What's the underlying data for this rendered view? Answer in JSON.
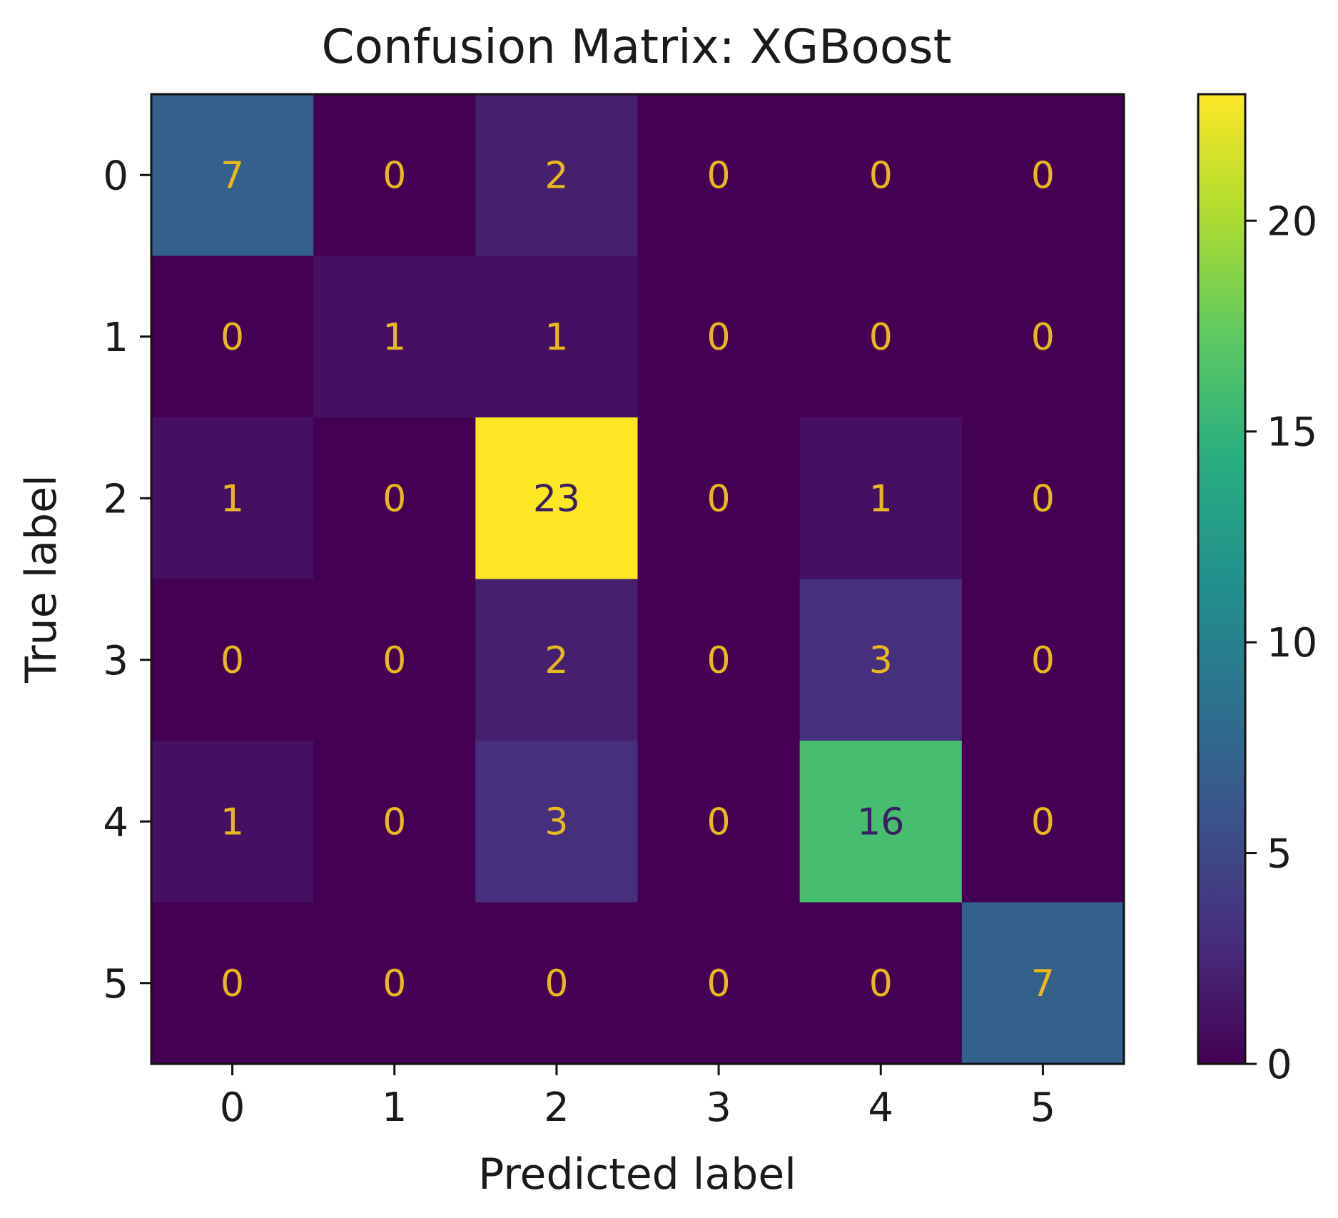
{
  "chart_data": {
    "type": "heatmap",
    "title": "Confusion Matrix: XGBoost",
    "xlabel": "Predicted label",
    "ylabel": "True label",
    "x_categories": [
      "0",
      "1",
      "2",
      "3",
      "4",
      "5"
    ],
    "y_categories": [
      "0",
      "1",
      "2",
      "3",
      "4",
      "5"
    ],
    "matrix": [
      [
        7,
        0,
        2,
        0,
        0,
        0
      ],
      [
        0,
        1,
        1,
        0,
        0,
        0
      ],
      [
        1,
        0,
        23,
        0,
        1,
        0
      ],
      [
        0,
        0,
        2,
        0,
        3,
        0
      ],
      [
        1,
        0,
        3,
        0,
        16,
        0
      ],
      [
        0,
        0,
        0,
        0,
        0,
        7
      ]
    ],
    "colormap": "viridis",
    "colorbar": {
      "vmin": 0,
      "vmax": 23,
      "ticks": [
        0,
        5,
        10,
        15,
        20
      ]
    },
    "grid": false,
    "annotation_colors": {
      "light_text": "#e8b91c",
      "dark_text": "#3a2060"
    }
  }
}
